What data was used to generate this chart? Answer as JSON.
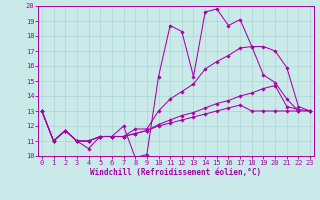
{
  "xlabel": "Windchill (Refroidissement éolien,°C)",
  "xlim_min": -0.3,
  "xlim_max": 23.3,
  "ylim_min": 10,
  "ylim_max": 20,
  "xticks": [
    0,
    1,
    2,
    3,
    4,
    5,
    6,
    7,
    8,
    9,
    10,
    11,
    12,
    13,
    14,
    15,
    16,
    17,
    18,
    19,
    20,
    21,
    22,
    23
  ],
  "yticks": [
    10,
    11,
    12,
    13,
    14,
    15,
    16,
    17,
    18,
    19,
    20
  ],
  "bg_color": "#caeaea",
  "line_color": "#aa00aa",
  "grid_color": "#b0d4d4",
  "lines": [
    {
      "x": [
        0,
        1,
        2,
        3,
        4,
        5,
        6,
        7,
        8,
        9,
        10,
        11,
        12,
        13,
        14,
        15,
        16,
        17,
        18,
        19,
        20,
        21,
        22
      ],
      "y": [
        13,
        11,
        11.7,
        11,
        10.5,
        11.3,
        11.3,
        12.0,
        9.9,
        10.1,
        15.3,
        18.7,
        18.3,
        15.3,
        19.6,
        19.8,
        18.7,
        19.1,
        17.3,
        15.4,
        14.9,
        13.8,
        13.0
      ]
    },
    {
      "x": [
        0,
        1,
        2,
        3,
        4,
        5,
        6,
        7,
        8,
        9,
        10,
        11,
        12,
        13,
        14,
        15,
        16,
        17,
        18,
        19,
        20,
        21,
        22,
        23
      ],
      "y": [
        13,
        11,
        11.7,
        11,
        11,
        11.3,
        11.3,
        11.3,
        11.8,
        11.8,
        13.0,
        13.8,
        14.3,
        14.8,
        15.8,
        16.3,
        16.7,
        17.2,
        17.3,
        17.3,
        17.0,
        15.9,
        13.3,
        13.0
      ]
    },
    {
      "x": [
        0,
        1,
        2,
        3,
        4,
        5,
        6,
        7,
        8,
        9,
        10,
        11,
        12,
        13,
        14,
        15,
        16,
        17,
        18,
        19,
        20,
        21,
        22,
        23
      ],
      "y": [
        13,
        11,
        11.7,
        11,
        11,
        11.3,
        11.3,
        11.3,
        11.5,
        11.7,
        12.1,
        12.4,
        12.7,
        12.9,
        13.2,
        13.5,
        13.7,
        14.0,
        14.2,
        14.5,
        14.7,
        13.3,
        13.1,
        13.0
      ]
    },
    {
      "x": [
        0,
        1,
        2,
        3,
        4,
        5,
        6,
        7,
        8,
        9,
        10,
        11,
        12,
        13,
        14,
        15,
        16,
        17,
        18,
        19,
        20,
        21,
        22,
        23
      ],
      "y": [
        13,
        11,
        11.7,
        11,
        11,
        11.3,
        11.3,
        11.3,
        11.5,
        11.7,
        12.0,
        12.2,
        12.4,
        12.6,
        12.8,
        13.0,
        13.2,
        13.4,
        13.0,
        13.0,
        13.0,
        13.0,
        13.0,
        13.0
      ]
    }
  ],
  "tick_fontsize": 5.0,
  "xlabel_fontsize": 5.5
}
